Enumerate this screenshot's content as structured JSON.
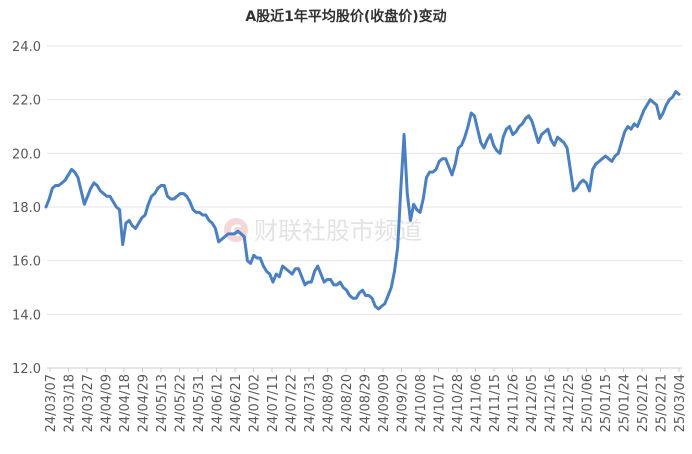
{
  "chart_data": {
    "type": "line",
    "title": "A股近1年平均股价(收盘价)变动",
    "watermark": "财联社股市频道",
    "xlabel": "",
    "ylabel": "",
    "ylim": [
      12.0,
      24.0
    ],
    "y_ticks": [
      "12.0",
      "14.0",
      "16.0",
      "18.0",
      "20.0",
      "22.0",
      "24.0"
    ],
    "grid": "horizontal",
    "colors": {
      "line": "#4a7fc1",
      "grid": "#e6e6e6",
      "axis": "#cccccc",
      "text": "#595959"
    },
    "x_tick_labels": [
      "24/03/07",
      "24/03/18",
      "24/03/27",
      "24/04/09",
      "24/04/18",
      "24/04/29",
      "24/05/13",
      "24/05/22",
      "24/05/31",
      "24/06/12",
      "24/06/21",
      "24/07/02",
      "24/07/11",
      "24/07/22",
      "24/07/31",
      "24/08/09",
      "24/08/20",
      "24/08/29",
      "24/09/09",
      "24/09/20",
      "24/10/08",
      "24/10/17",
      "24/10/28",
      "24/11/06",
      "24/11/15",
      "24/11/26",
      "24/12/05",
      "24/12/16",
      "24/12/25",
      "25/01/06",
      "25/01/15",
      "25/01/24",
      "25/02/12",
      "25/02/21",
      "25/03/04"
    ],
    "series": [
      {
        "values": [
          18.0,
          18.3,
          18.7,
          18.8,
          18.8,
          18.9,
          19.0,
          19.2,
          19.4,
          19.3,
          19.1,
          18.6,
          18.1,
          18.4,
          18.7,
          18.9,
          18.8,
          18.6,
          18.5,
          18.4,
          18.4,
          18.2,
          18.0,
          17.9,
          16.6,
          17.4,
          17.5,
          17.3,
          17.2,
          17.4,
          17.6,
          17.7,
          18.1,
          18.4,
          18.5,
          18.7,
          18.8,
          18.8,
          18.4,
          18.3,
          18.3,
          18.4,
          18.5,
          18.5,
          18.4,
          18.2,
          17.9,
          17.8,
          17.8,
          17.7,
          17.7,
          17.5,
          17.4,
          17.2,
          16.7,
          16.8,
          16.9,
          17.0,
          17.0,
          17.0,
          17.1,
          17.0,
          16.9,
          16.0,
          15.9,
          16.2,
          16.1,
          16.1,
          15.8,
          15.6,
          15.5,
          15.2,
          15.5,
          15.4,
          15.8,
          15.7,
          15.6,
          15.5,
          15.7,
          15.7,
          15.4,
          15.1,
          15.2,
          15.2,
          15.6,
          15.8,
          15.5,
          15.2,
          15.3,
          15.3,
          15.1,
          15.1,
          15.2,
          15.0,
          14.9,
          14.7,
          14.6,
          14.6,
          14.8,
          14.9,
          14.7,
          14.7,
          14.6,
          14.3,
          14.2,
          14.3,
          14.4,
          14.7,
          15.0,
          15.6,
          16.5,
          18.7,
          20.7,
          18.5,
          17.5,
          18.1,
          17.9,
          17.8,
          18.3,
          19.1,
          19.3,
          19.3,
          19.4,
          19.7,
          19.8,
          19.8,
          19.5,
          19.2,
          19.6,
          20.2,
          20.3,
          20.6,
          21.0,
          21.5,
          21.4,
          20.9,
          20.4,
          20.2,
          20.5,
          20.7,
          20.3,
          20.1,
          20.0,
          20.6,
          20.9,
          21.0,
          20.7,
          20.8,
          21.0,
          21.1,
          21.3,
          21.4,
          21.2,
          20.8,
          20.4,
          20.7,
          20.8,
          20.9,
          20.5,
          20.3,
          20.6,
          20.5,
          20.4,
          20.2,
          19.4,
          18.6,
          18.7,
          18.9,
          19.0,
          18.9,
          18.6,
          19.4,
          19.6,
          19.7,
          19.8,
          19.9,
          19.8,
          19.7,
          19.9,
          20.0,
          20.4,
          20.8,
          21.0,
          20.9,
          21.1,
          21.0,
          21.3,
          21.6,
          21.8,
          22.0,
          21.9,
          21.8,
          21.3,
          21.5,
          21.8,
          22.0,
          22.1,
          22.3,
          22.2
        ]
      }
    ]
  }
}
